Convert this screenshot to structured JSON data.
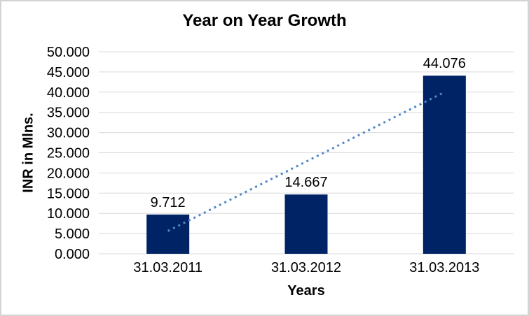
{
  "chart_data": {
    "type": "bar",
    "title": "Year on Year Growth",
    "xlabel": "Years",
    "ylabel": "INR in Mlns.",
    "categories": [
      "31.03.2011",
      "31.03.2012",
      "31.03.2013"
    ],
    "values": [
      9.712,
      14.667,
      44.076
    ],
    "data_labels": [
      "9.712",
      "14.667",
      "44.076"
    ],
    "ylim": [
      0,
      50
    ],
    "ytick_step": 5,
    "ytick_labels": [
      "0.000",
      "5.000",
      "10.000",
      "15.000",
      "20.000",
      "25.000",
      "30.000",
      "35.000",
      "40.000",
      "45.000",
      "50.000"
    ],
    "grid": true,
    "legend": false,
    "trendline": {
      "style": "dotted",
      "kind": "linear",
      "endpoints_y": [
        5.64,
        40.0
      ],
      "color": "#4C87C8"
    },
    "colors": {
      "bar": "#002366",
      "gridline": "#D9D9D9",
      "axis_line": "#D9D9D9",
      "trendline": "#4C87C8",
      "text": "#000000",
      "frame_border": "#D3D3D3",
      "background": "#FFFFFF"
    }
  }
}
